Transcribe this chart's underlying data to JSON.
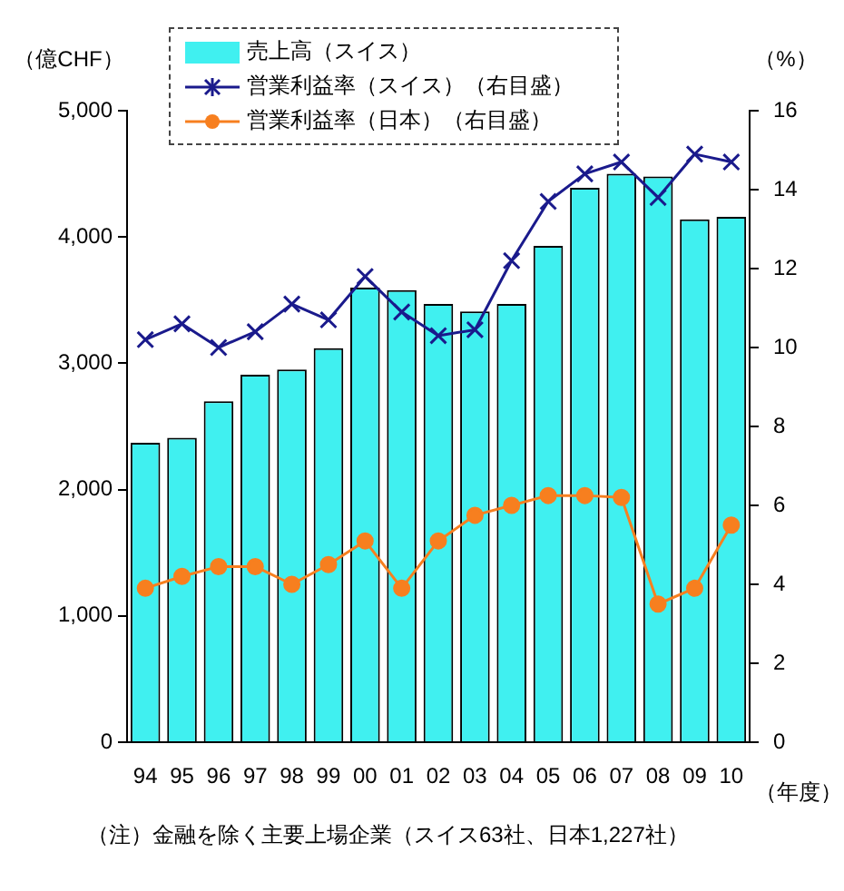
{
  "chart_data": {
    "type": "bar",
    "ylabel": "（億CHF）",
    "y2label": "（%）",
    "xlabel": "（年度）",
    "categories": [
      "94",
      "95",
      "96",
      "97",
      "98",
      "99",
      "00",
      "01",
      "02",
      "03",
      "04",
      "05",
      "06",
      "07",
      "08",
      "09",
      "10"
    ],
    "series": [
      {
        "name": "売上高（スイス）",
        "color": "#40f0f0",
        "values": [
          2370,
          2410,
          2700,
          2910,
          2950,
          3120,
          3600,
          3580,
          3470,
          3410,
          3470,
          3930,
          4390,
          4500,
          4480,
          4140,
          4160
        ]
      },
      {
        "name": "営業利益率（スイス）（右目盛）",
        "type": "line",
        "axis": "y2",
        "marker": "cross",
        "color": "#1a1a8c",
        "values": [
          10.2,
          10.6,
          10.0,
          10.4,
          11.1,
          10.7,
          11.8,
          10.9,
          10.3,
          10.45,
          12.2,
          13.7,
          14.4,
          14.7,
          13.8,
          14.9,
          14.7
        ]
      },
      {
        "name": "営業利益率（日本）（右目盛）",
        "type": "line",
        "axis": "y2",
        "marker": "circle",
        "color": "#f77f1f",
        "values": [
          3.9,
          4.2,
          4.45,
          4.45,
          4.0,
          4.5,
          5.1,
          3.9,
          5.1,
          5.75,
          6.0,
          6.25,
          6.25,
          6.2,
          3.5,
          3.9,
          5.5
        ]
      }
    ],
    "ylim": [
      0,
      5000
    ],
    "yticks": [
      {
        "value": 0,
        "label": "0"
      },
      {
        "value": 1000,
        "label": "1,000"
      },
      {
        "value": 2000,
        "label": "2,000"
      },
      {
        "value": 3000,
        "label": "3,000"
      },
      {
        "value": 4000,
        "label": "4,000"
      },
      {
        "value": 5000,
        "label": "5,000"
      }
    ],
    "y2lim": [
      0,
      16
    ],
    "y2ticks": [
      0,
      2,
      4,
      6,
      8,
      10,
      12,
      14,
      16
    ],
    "grid": false,
    "legend": "top",
    "annotations": [
      "（注）金融を除く主要上場企業（スイス63社、日本1,227社）"
    ]
  }
}
